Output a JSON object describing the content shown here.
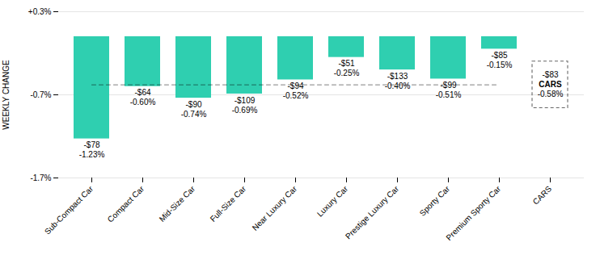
{
  "chart_data": {
    "type": "bar",
    "categories": [
      "Sub-Compact Car",
      "Compact Car",
      "Mid-Size Car",
      "Full-Size Car",
      "Near Luxury Car",
      "Luxury Car",
      "Prestige Luxury Car",
      "Sporty Car",
      "Premium Sporty Car",
      "CARS"
    ],
    "values": [
      -1.23,
      -0.6,
      -0.74,
      -0.69,
      -0.52,
      -0.25,
      -0.4,
      -0.51,
      -0.15,
      null
    ],
    "value_labels": [
      "-1.23%",
      "-0.60%",
      "-0.74%",
      "-0.69%",
      "-0.52%",
      "-0.25%",
      "-0.40%",
      "-0.51%",
      "-0.15%",
      null
    ],
    "dollar_labels": [
      "-$78",
      "-$64",
      "-$90",
      "-$109",
      "-$94",
      "-$51",
      "-$133",
      "-$99",
      "-$85",
      null
    ],
    "data_labels": true,
    "color": "#2fcfb0",
    "ylabel": "WEEKLY CHANGE",
    "ylim": [
      -1.7,
      0.3
    ],
    "yticks": [
      {
        "value": -1.7,
        "label": "-1.7%"
      },
      {
        "value": -0.7,
        "label": "-0.7%"
      },
      {
        "value": 0.3,
        "label": "+0.3%"
      }
    ],
    "grid": true,
    "annotations": [
      {
        "type": "hline",
        "value": -0.58
      },
      {
        "type": "box",
        "category": "CARS",
        "value": -0.58,
        "lines": [
          "-$83",
          "CARS",
          "-0.58%"
        ]
      }
    ]
  }
}
